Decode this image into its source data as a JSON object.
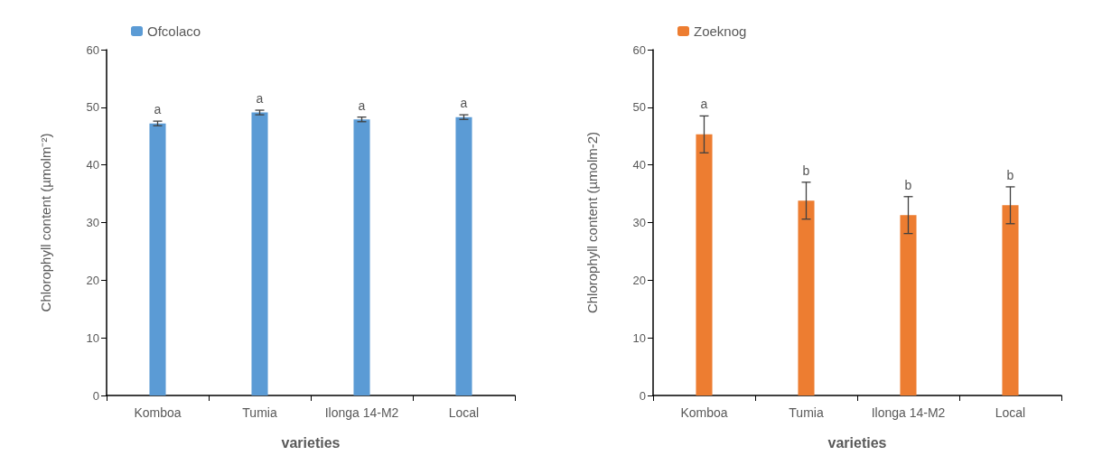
{
  "chart_data": [
    {
      "type": "bar",
      "xlabel": "varieties",
      "ylabel": "Chlorophyll content (µmolm⁻²)",
      "categories": [
        "Komboa",
        "Tumia",
        "Ilonga 14-M2",
        "Local"
      ],
      "series": [
        {
          "name": "Ofcolaco",
          "color": "#5b9bd5",
          "values": [
            47.2,
            49.1,
            47.9,
            48.3
          ],
          "errors": [
            0.4,
            0.4,
            0.4,
            0.4
          ]
        }
      ],
      "ylim": [
        0,
        60
      ],
      "yticks": [
        0,
        10,
        20,
        30,
        40,
        50,
        60
      ],
      "grid": false,
      "legend": "top left",
      "annotations": [
        "a",
        "a",
        "a",
        "a"
      ]
    },
    {
      "type": "bar",
      "xlabel": "varieties",
      "ylabel": "Chlorophyll content (µmolm-2)",
      "categories": [
        "Komboa",
        "Tumia",
        "Ilonga 14-M2",
        "Local"
      ],
      "series": [
        {
          "name": "Zoeknog",
          "color": "#ed7d31",
          "values": [
            45.3,
            33.8,
            31.3,
            33.0
          ],
          "errors": [
            3.2,
            3.2,
            3.2,
            3.2
          ]
        }
      ],
      "ylim": [
        0,
        60
      ],
      "yticks": [
        0,
        10,
        20,
        30,
        40,
        50,
        60
      ],
      "grid": false,
      "legend": "top left",
      "annotations": [
        "a",
        "b",
        "b",
        "b"
      ]
    }
  ]
}
